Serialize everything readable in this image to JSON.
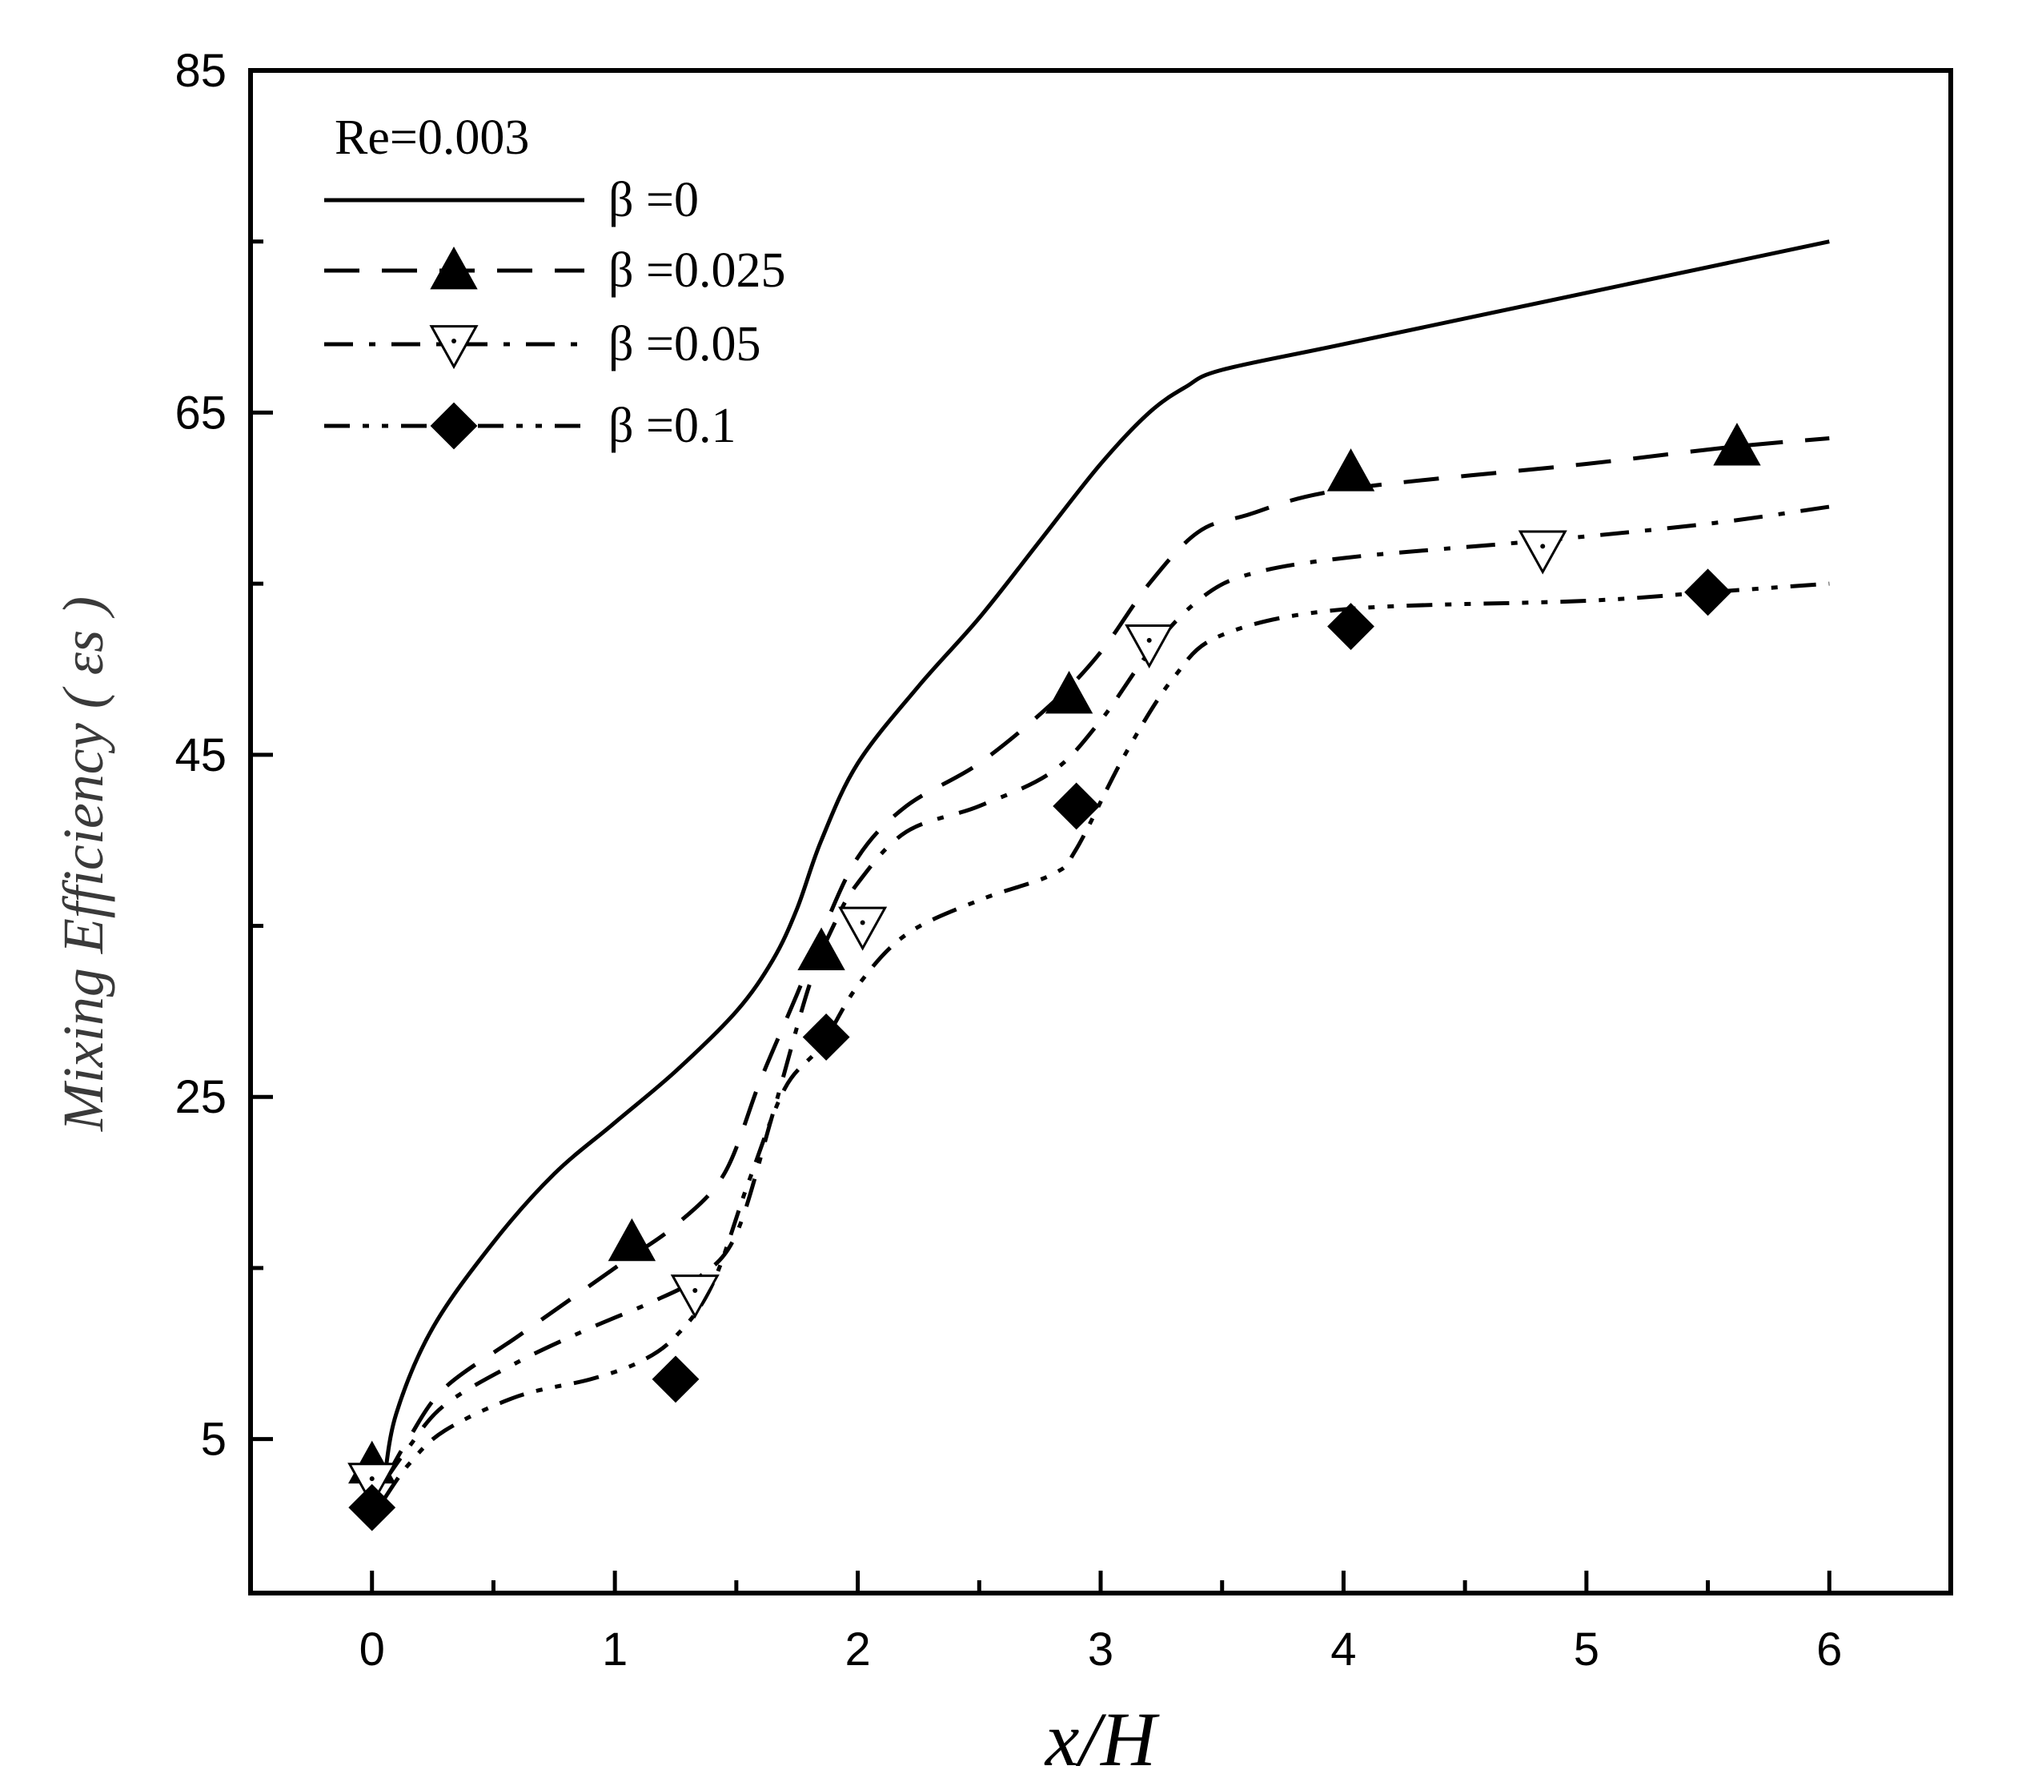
{
  "chart_data": {
    "type": "line",
    "title": "",
    "xlabel": "x/H",
    "ylabel": "Mixing Efficiency ( εs )",
    "xlim": [
      -0.5,
      6.5
    ],
    "ylim": [
      -4,
      85
    ],
    "x_ticks": [
      "0",
      "1",
      "2",
      "3",
      "4",
      "5",
      "6"
    ],
    "y_ticks": [
      "85",
      "65",
      "45",
      "25",
      "5"
    ],
    "y_tick_values": [
      85,
      65,
      45,
      25,
      5
    ],
    "x_tick_values": [
      0,
      1,
      2,
      3,
      4,
      5,
      6
    ],
    "legend_header": "Re=0.003",
    "legend_position": "top-left",
    "series": [
      {
        "name": "β =0",
        "line_style": "solid",
        "marker": "none",
        "x": [
          0.05,
          0.1,
          0.25,
          0.5,
          0.75,
          1.0,
          1.25,
          1.5,
          1.65,
          1.75,
          1.85,
          2.0,
          2.25,
          2.5,
          2.75,
          3.0,
          3.2,
          3.35,
          3.5,
          4.0,
          5.0,
          6.0
        ],
        "y": [
          2.5,
          6.5,
          11.5,
          16.5,
          20.5,
          23.5,
          26.5,
          30.0,
          33.0,
          36.0,
          40.0,
          44.5,
          49.0,
          53.0,
          57.5,
          62.0,
          65.0,
          66.5,
          67.5,
          69.0,
          72.0,
          75.0
        ]
      },
      {
        "name": "β =0.025",
        "line_style": "dashed",
        "marker": "filled-triangle",
        "x": [
          0.05,
          0.15,
          0.3,
          0.6,
          0.9,
          1.05,
          1.25,
          1.45,
          1.6,
          1.75,
          1.85,
          2.0,
          2.2,
          2.5,
          2.8,
          3.0,
          3.2,
          3.4,
          3.6,
          4.0,
          5.0,
          5.6,
          6.0
        ],
        "y": [
          2.5,
          5.0,
          8.0,
          11.0,
          14.0,
          15.5,
          17.5,
          20.5,
          26.0,
          31.0,
          34.5,
          39.0,
          42.0,
          44.5,
          48.0,
          51.0,
          55.0,
          58.0,
          59.0,
          60.5,
          62.0,
          63.0,
          63.5
        ]
      },
      {
        "name": "β =0.05",
        "line_style": "dash-dot",
        "marker": "open-triangle-down",
        "x": [
          0.05,
          0.15,
          0.3,
          0.6,
          0.9,
          1.15,
          1.35,
          1.5,
          1.65,
          1.8,
          1.9,
          2.0,
          2.2,
          2.5,
          2.8,
          3.0,
          3.2,
          3.4,
          3.6,
          4.0,
          4.8,
          5.5,
          6.0
        ],
        "y": [
          2.5,
          4.5,
          7.0,
          9.5,
          11.5,
          13.0,
          14.5,
          17.0,
          24.0,
          31.5,
          35.0,
          37.5,
          40.5,
          42.0,
          44.0,
          47.0,
          51.0,
          54.0,
          55.5,
          56.5,
          57.5,
          58.5,
          59.5
        ]
      },
      {
        "name": "β =0.1",
        "line_style": "dash-dot-dot",
        "marker": "filled-diamond",
        "x": [
          0.05,
          0.15,
          0.3,
          0.6,
          0.9,
          1.1,
          1.25,
          1.4,
          1.55,
          1.7,
          1.85,
          2.0,
          2.2,
          2.5,
          2.8,
          2.9,
          3.1,
          3.3,
          3.5,
          4.0,
          5.0,
          5.5,
          6.0
        ],
        "y": [
          1.5,
          3.5,
          5.5,
          7.5,
          8.5,
          9.5,
          11.0,
          14.0,
          20.0,
          25.5,
          28.0,
          31.5,
          34.5,
          36.5,
          38.0,
          39.5,
          45.0,
          49.5,
          52.0,
          53.5,
          54.0,
          54.5,
          55.0
        ]
      }
    ],
    "markers": {
      "β =0.025": [
        [
          0.0,
          3.5
        ],
        [
          1.07,
          16.5
        ],
        [
          1.85,
          33.5
        ],
        [
          2.87,
          48.5
        ],
        [
          4.03,
          61.5
        ],
        [
          5.62,
          63.0
        ]
      ],
      "β =0.05": [
        [
          0.0,
          2.5
        ],
        [
          1.33,
          13.5
        ],
        [
          2.02,
          35.0
        ],
        [
          3.2,
          51.5
        ],
        [
          4.82,
          57.0
        ]
      ],
      "β =0.1": [
        [
          0.0,
          1.0
        ],
        [
          1.25,
          8.5
        ],
        [
          1.87,
          28.5
        ],
        [
          2.9,
          42.0
        ],
        [
          4.03,
          52.5
        ],
        [
          5.5,
          54.5
        ]
      ]
    },
    "legend_entries": [
      {
        "label": "β =0",
        "style": "solid",
        "marker": "none"
      },
      {
        "label": "β =0.025",
        "style": "dashed",
        "marker": "filled-triangle"
      },
      {
        "label": "β =0.05",
        "style": "dash-dot",
        "marker": "open-triangle-down"
      },
      {
        "label": "β =0.1",
        "style": "dash-dot-dot",
        "marker": "filled-diamond"
      }
    ],
    "colors": {
      "line": "#000000",
      "ylabel": "#3a3a3a",
      "background": "#ffffff"
    }
  }
}
